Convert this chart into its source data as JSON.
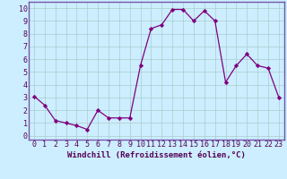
{
  "x": [
    0,
    1,
    2,
    3,
    4,
    5,
    6,
    7,
    8,
    9,
    10,
    11,
    12,
    13,
    14,
    15,
    16,
    17,
    18,
    19,
    20,
    21,
    22,
    23
  ],
  "y": [
    3.1,
    2.4,
    1.2,
    1.0,
    0.8,
    0.5,
    2.0,
    1.4,
    1.4,
    1.4,
    5.5,
    8.4,
    8.7,
    9.9,
    9.9,
    9.0,
    9.8,
    9.0,
    4.2,
    5.5,
    6.4,
    5.5,
    5.3,
    3.0
  ],
  "line_color": "#800080",
  "marker": "D",
  "marker_size": 2.2,
  "line_width": 0.9,
  "bg_color": "#cceeff",
  "plot_bg_color": "#cceeff",
  "grid_color": "#aacccc",
  "xlabel": "Windchill (Refroidissement éolien,°C)",
  "xlabel_fontsize": 6.5,
  "ylabel_ticks": [
    0,
    1,
    2,
    3,
    4,
    5,
    6,
    7,
    8,
    9,
    10
  ],
  "xlim": [
    -0.5,
    23.5
  ],
  "ylim": [
    -0.3,
    10.5
  ],
  "tick_fontsize": 6.0,
  "border_color": "#7755aa"
}
